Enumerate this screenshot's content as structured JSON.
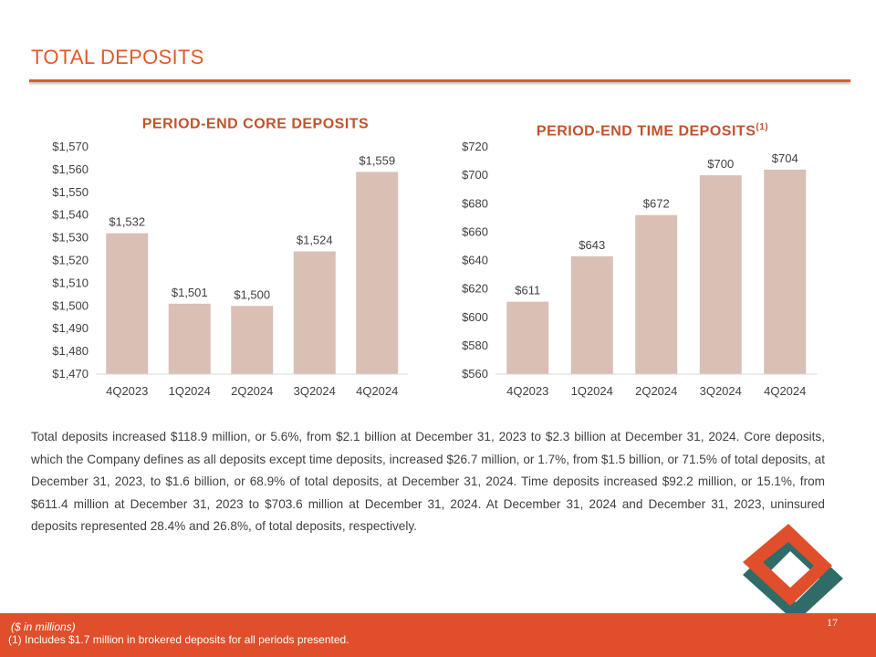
{
  "header": {
    "title": "TOTAL DEPOSITS"
  },
  "colors": {
    "accent": "#e05a2b",
    "bar": "#d9bfb4",
    "footer": "#e04e2b"
  },
  "chart_data": [
    {
      "type": "bar",
      "title": "PERIOD-END CORE DEPOSITS",
      "title_sup": "",
      "categories": [
        "4Q2023",
        "1Q2024",
        "2Q2024",
        "3Q2024",
        "4Q2024"
      ],
      "values": [
        1532,
        1501,
        1500,
        1524,
        1559
      ],
      "data_labels": [
        "$1,532",
        "$1,501",
        "$1,500",
        "$1,524",
        "$1,559"
      ],
      "ylim": [
        1470,
        1570
      ],
      "yticks": [
        "$1,470",
        "$1,480",
        "$1,490",
        "$1,500",
        "$1,510",
        "$1,520",
        "$1,530",
        "$1,540",
        "$1,550",
        "$1,560",
        "$1,570"
      ],
      "xlabel": "",
      "ylabel": "",
      "grid": false,
      "legend": "none"
    },
    {
      "type": "bar",
      "title": "PERIOD-END TIME DEPOSITS",
      "title_sup": "(1)",
      "categories": [
        "4Q2023",
        "1Q2024",
        "2Q2024",
        "3Q2024",
        "4Q2024"
      ],
      "values": [
        611,
        643,
        672,
        700,
        704
      ],
      "data_labels": [
        "$611",
        "$643",
        "$672",
        "$700",
        "$704"
      ],
      "ylim": [
        560,
        720
      ],
      "yticks": [
        "$560",
        "$580",
        "$600",
        "$620",
        "$640",
        "$660",
        "$680",
        "$700",
        "$720"
      ],
      "xlabel": "",
      "ylabel": "",
      "grid": false,
      "legend": "none"
    }
  ],
  "body": {
    "paragraph": "Total deposits increased $118.9 million, or 5.6%, from $2.1 billion at December 31, 2023 to $2.3 billion at December 31, 2024. Core deposits, which the Company defines as all deposits except time deposits, increased $26.7 million, or 1.7%, from $1.5 billion, or 71.5% of total deposits, at December 31, 2023, to $1.6 billion, or 68.9% of total deposits, at December 31, 2024. Time deposits increased $92.2 million, or 15.1%, from $611.4 million at December 31, 2023 to $703.6 million at December 31, 2024. At December 31, 2024 and December 31, 2023, uninsured deposits represented 28.4% and 26.8%, of total deposits, respectively."
  },
  "footer": {
    "units": "($ in millions)",
    "note": "(1) Includes $1.7 million in brokered deposits for all periods presented.",
    "page": "17"
  }
}
